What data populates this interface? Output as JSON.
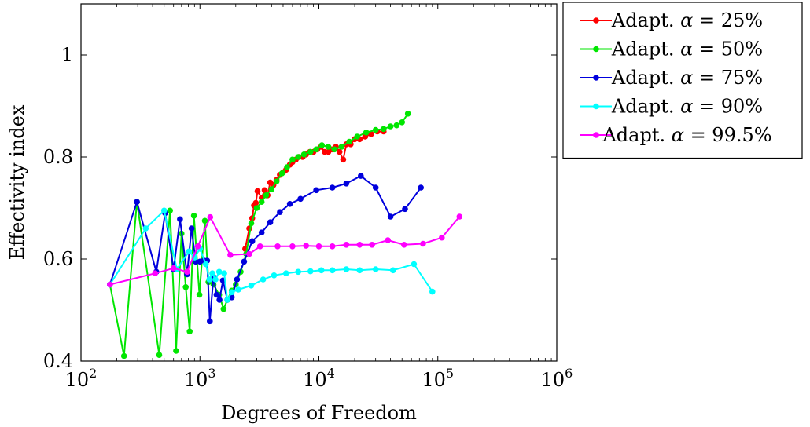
{
  "chart_data": {
    "type": "line",
    "title": "",
    "xlabel": "Degrees of Freedom",
    "ylabel": "Effectivity index",
    "xscale": "log",
    "xlim": [
      100,
      1000000
    ],
    "ylim": [
      0.4,
      1.1
    ],
    "x_ticks": [
      {
        "value": 100,
        "base": "10",
        "exp": "2"
      },
      {
        "value": 1000,
        "base": "10",
        "exp": "3"
      },
      {
        "value": 10000,
        "base": "10",
        "exp": "4"
      },
      {
        "value": 100000,
        "base": "10",
        "exp": "5"
      },
      {
        "value": 1000000,
        "base": "10",
        "exp": "6"
      }
    ],
    "y_ticks": [
      {
        "value": 0.4,
        "label": "0.4"
      },
      {
        "value": 0.6,
        "label": "0.6"
      },
      {
        "value": 0.8,
        "label": "0.8"
      },
      {
        "value": 1.0,
        "label": "1"
      }
    ],
    "grid": false,
    "legend_position": "outside-top-right",
    "series": [
      {
        "name": "Adapt. α = 25%",
        "label_prefix": "Adapt. ",
        "label_var": "α",
        "label_suffix": " = 25%",
        "color": "#ff0000",
        "points": [
          [
            2400,
            0.62
          ],
          [
            2600,
            0.66
          ],
          [
            2750,
            0.68
          ],
          [
            2850,
            0.705
          ],
          [
            2950,
            0.71
          ],
          [
            3050,
            0.733
          ],
          [
            3300,
            0.72
          ],
          [
            3500,
            0.735
          ],
          [
            3700,
            0.725
          ],
          [
            3900,
            0.75
          ],
          [
            4150,
            0.745
          ],
          [
            4400,
            0.755
          ],
          [
            4700,
            0.765
          ],
          [
            5000,
            0.77
          ],
          [
            5300,
            0.775
          ],
          [
            5700,
            0.785
          ],
          [
            6000,
            0.79
          ],
          [
            6400,
            0.795
          ],
          [
            6800,
            0.8
          ],
          [
            7300,
            0.8
          ],
          [
            7800,
            0.805
          ],
          [
            8400,
            0.81
          ],
          [
            9000,
            0.81
          ],
          [
            9700,
            0.815
          ],
          [
            10400,
            0.82
          ],
          [
            11200,
            0.81
          ],
          [
            12000,
            0.81
          ],
          [
            12900,
            0.815
          ],
          [
            13900,
            0.82
          ],
          [
            14900,
            0.81
          ],
          [
            16000,
            0.795
          ],
          [
            17000,
            0.825
          ],
          [
            18500,
            0.825
          ],
          [
            20000,
            0.835
          ],
          [
            22000,
            0.835
          ],
          [
            24500,
            0.84
          ],
          [
            27500,
            0.845
          ],
          [
            31000,
            0.85
          ],
          [
            35000,
            0.85
          ]
        ]
      },
      {
        "name": "Adapt. α = 50%",
        "label_prefix": "Adapt. ",
        "label_var": "α",
        "label_suffix": " = 50%",
        "color": "#00e600",
        "points": [
          [
            175,
            0.55
          ],
          [
            230,
            0.41
          ],
          [
            295,
            0.712
          ],
          [
            455,
            0.412
          ],
          [
            560,
            0.695
          ],
          [
            630,
            0.42
          ],
          [
            700,
            0.65
          ],
          [
            760,
            0.545
          ],
          [
            820,
            0.458
          ],
          [
            890,
            0.685
          ],
          [
            990,
            0.53
          ],
          [
            1100,
            0.675
          ],
          [
            1180,
            0.555
          ],
          [
            1300,
            0.55
          ],
          [
            1450,
            0.53
          ],
          [
            1580,
            0.502
          ],
          [
            1700,
            0.52
          ],
          [
            1850,
            0.538
          ],
          [
            2000,
            0.55
          ],
          [
            2200,
            0.575
          ],
          [
            2450,
            0.61
          ],
          [
            2700,
            0.67
          ],
          [
            3000,
            0.7
          ],
          [
            3300,
            0.712
          ],
          [
            3600,
            0.725
          ],
          [
            4000,
            0.737
          ],
          [
            4400,
            0.752
          ],
          [
            4900,
            0.768
          ],
          [
            5400,
            0.78
          ],
          [
            6000,
            0.795
          ],
          [
            6700,
            0.8
          ],
          [
            7500,
            0.805
          ],
          [
            8500,
            0.81
          ],
          [
            9500,
            0.815
          ],
          [
            10600,
            0.823
          ],
          [
            12000,
            0.82
          ],
          [
            13500,
            0.815
          ],
          [
            15500,
            0.82
          ],
          [
            18000,
            0.83
          ],
          [
            21000,
            0.84
          ],
          [
            25000,
            0.848
          ],
          [
            30000,
            0.853
          ],
          [
            35000,
            0.855
          ],
          [
            40000,
            0.86
          ],
          [
            45000,
            0.862
          ],
          [
            50000,
            0.868
          ],
          [
            56000,
            0.885
          ]
        ]
      },
      {
        "name": "Adapt. α = 75%",
        "label_prefix": "Adapt. ",
        "label_var": "α",
        "label_suffix": " = 75%",
        "color": "#0000dd",
        "points": [
          [
            175,
            0.55
          ],
          [
            295,
            0.712
          ],
          [
            430,
            0.575
          ],
          [
            510,
            0.69
          ],
          [
            600,
            0.58
          ],
          [
            680,
            0.678
          ],
          [
            780,
            0.57
          ],
          [
            850,
            0.66
          ],
          [
            920,
            0.595
          ],
          [
            1000,
            0.595
          ],
          [
            1080,
            0.597
          ],
          [
            1150,
            0.597
          ],
          [
            1210,
            0.478
          ],
          [
            1300,
            0.565
          ],
          [
            1380,
            0.53
          ],
          [
            1460,
            0.52
          ],
          [
            1560,
            0.558
          ],
          [
            1700,
            0.52
          ],
          [
            1850,
            0.525
          ],
          [
            2050,
            0.56
          ],
          [
            2350,
            0.595
          ],
          [
            2750,
            0.635
          ],
          [
            3300,
            0.652
          ],
          [
            3900,
            0.672
          ],
          [
            4700,
            0.692
          ],
          [
            5700,
            0.708
          ],
          [
            7000,
            0.718
          ],
          [
            9500,
            0.735
          ],
          [
            13000,
            0.74
          ],
          [
            17000,
            0.748
          ],
          [
            22500,
            0.763
          ],
          [
            30000,
            0.74
          ],
          [
            40000,
            0.683
          ],
          [
            53000,
            0.698
          ],
          [
            72000,
            0.74
          ]
        ]
      },
      {
        "name": "Adapt. α = 90%",
        "label_prefix": "Adapt. ",
        "label_var": "α",
        "label_suffix": " = 90%",
        "color": "#00ffff",
        "points": [
          [
            175,
            0.55
          ],
          [
            350,
            0.66
          ],
          [
            500,
            0.695
          ],
          [
            640,
            0.58
          ],
          [
            810,
            0.615
          ],
          [
            900,
            0.603
          ],
          [
            1000,
            0.62
          ],
          [
            1120,
            0.59
          ],
          [
            1200,
            0.56
          ],
          [
            1270,
            0.572
          ],
          [
            1350,
            0.56
          ],
          [
            1450,
            0.575
          ],
          [
            1600,
            0.572
          ],
          [
            1700,
            0.52
          ],
          [
            1850,
            0.535
          ],
          [
            2100,
            0.54
          ],
          [
            2700,
            0.548
          ],
          [
            3400,
            0.56
          ],
          [
            4200,
            0.568
          ],
          [
            5300,
            0.572
          ],
          [
            6700,
            0.575
          ],
          [
            8500,
            0.576
          ],
          [
            10500,
            0.578
          ],
          [
            13000,
            0.578
          ],
          [
            17000,
            0.58
          ],
          [
            22000,
            0.578
          ],
          [
            30000,
            0.58
          ],
          [
            42000,
            0.578
          ],
          [
            63000,
            0.59
          ],
          [
            90000,
            0.536
          ]
        ]
      },
      {
        "name": "Adapt. α = 99.5%",
        "label_prefix": "Adapt. ",
        "label_var": "α",
        "label_suffix": " = 99.5%",
        "color": "#ff00ff",
        "points": [
          [
            175,
            0.55
          ],
          [
            420,
            0.572
          ],
          [
            600,
            0.582
          ],
          [
            780,
            0.575
          ],
          [
            960,
            0.625
          ],
          [
            1220,
            0.682
          ],
          [
            1800,
            0.608
          ],
          [
            2600,
            0.61
          ],
          [
            3200,
            0.625
          ],
          [
            4500,
            0.625
          ],
          [
            6000,
            0.625
          ],
          [
            7800,
            0.626
          ],
          [
            10000,
            0.625
          ],
          [
            13000,
            0.625
          ],
          [
            17000,
            0.628
          ],
          [
            22000,
            0.628
          ],
          [
            28000,
            0.628
          ],
          [
            38000,
            0.637
          ],
          [
            52000,
            0.628
          ],
          [
            75000,
            0.63
          ],
          [
            108000,
            0.642
          ],
          [
            152000,
            0.683
          ]
        ]
      }
    ]
  }
}
